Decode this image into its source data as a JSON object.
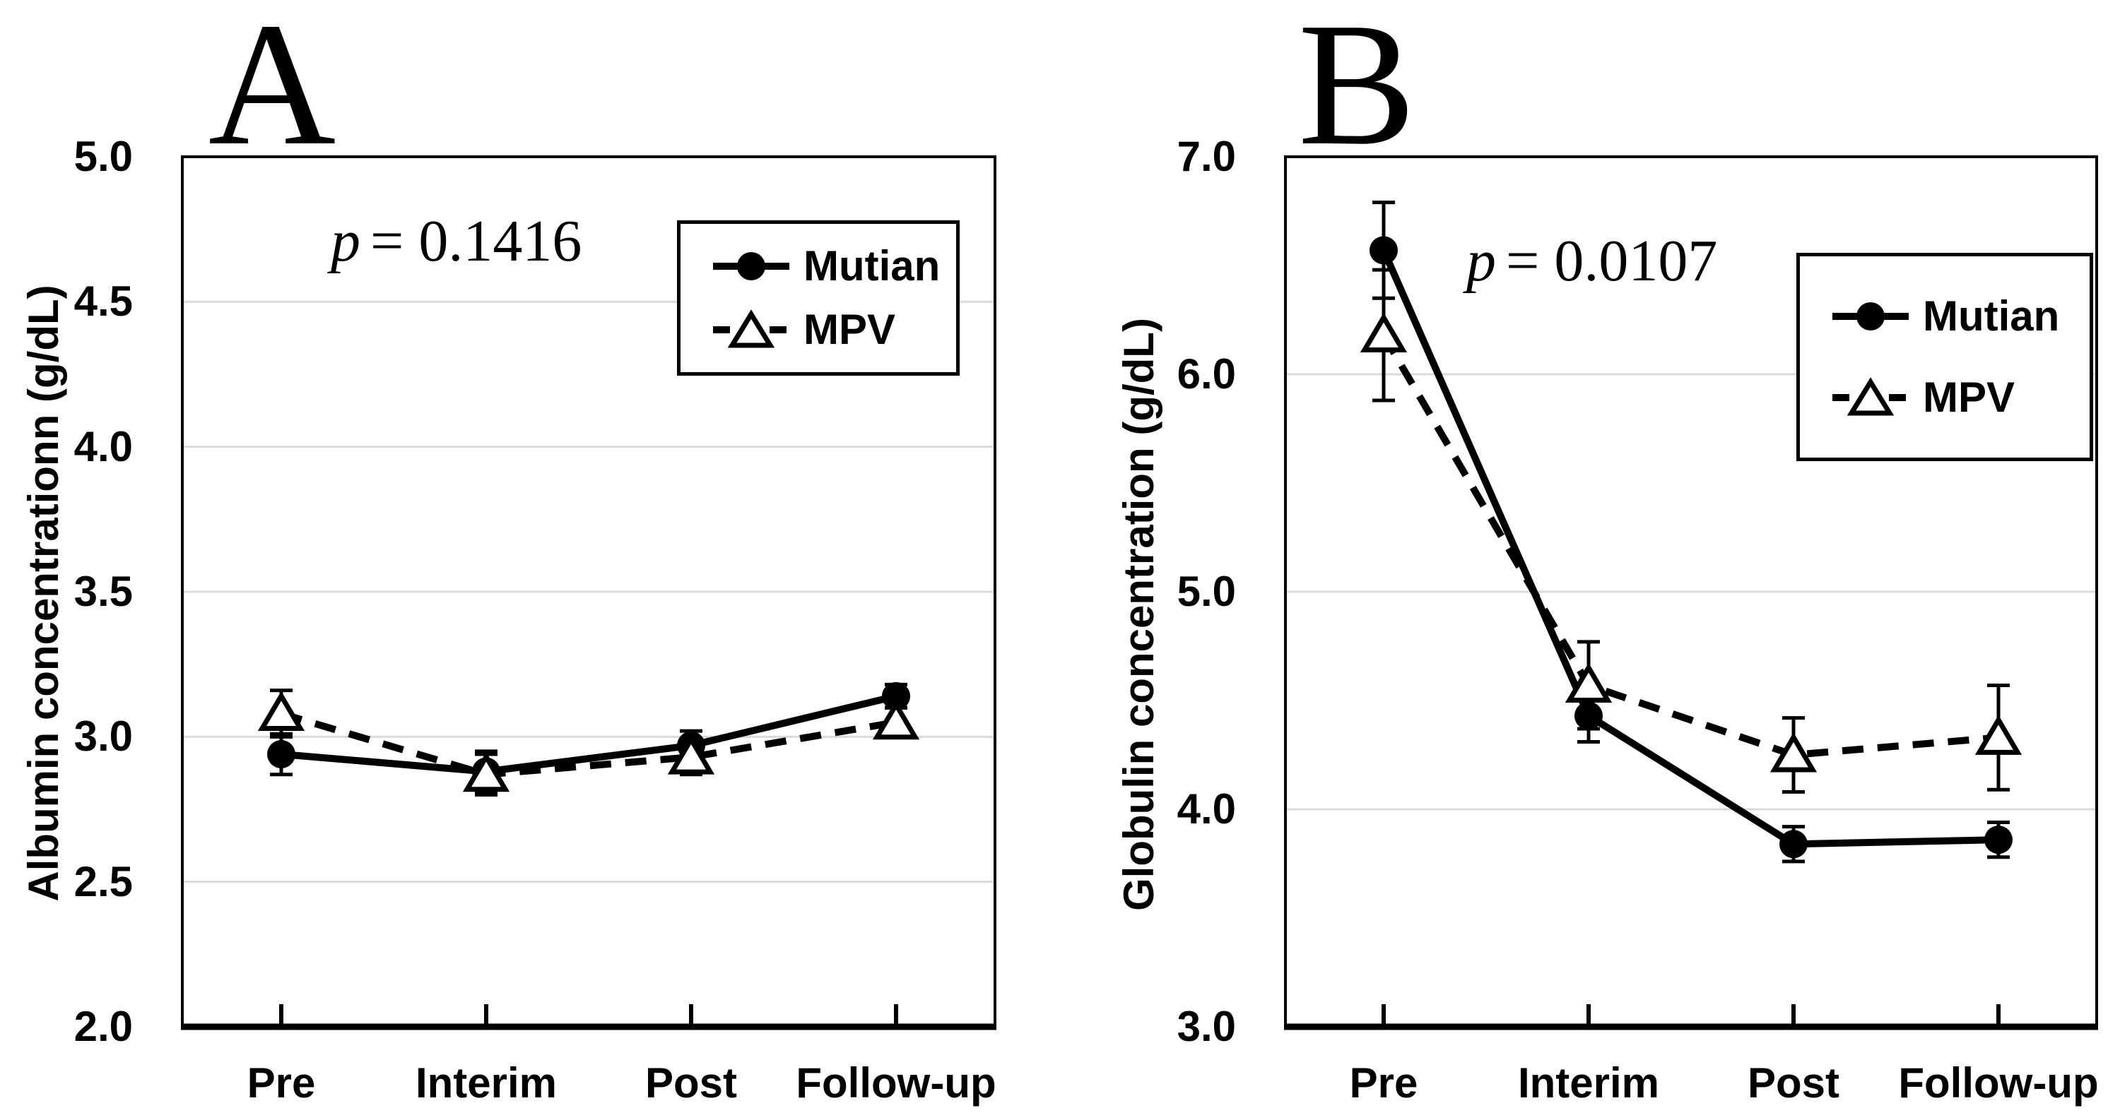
{
  "chart_data": [
    {
      "panel": "A",
      "type": "line",
      "title": "A",
      "categories": [
        "Pre",
        "Interim",
        "Post",
        "Follow-up"
      ],
      "series": [
        {
          "name": "Mutian",
          "line": "solid",
          "marker": "filled-circle",
          "values": [
            2.94,
            2.88,
            2.97,
            3.14
          ],
          "errors": [
            0.07,
            0.07,
            0.05,
            0.04
          ]
        },
        {
          "name": "MPV",
          "line": "dashed",
          "marker": "open-triangle",
          "values": [
            3.08,
            2.87,
            2.93,
            3.05
          ],
          "errors": [
            0.08,
            0.07,
            0.06,
            0.05
          ]
        }
      ],
      "ylabel": "Albumin concentrationn (g/dL)",
      "xlabel": "",
      "ylim": [
        2.0,
        5.0
      ],
      "yticks": [
        "5.0",
        "4.5",
        "4.0",
        "3.5",
        "3.0",
        "2.5",
        "2.0"
      ],
      "p_prefix": "p",
      "p_suffix": "= 0.1416",
      "grid": "horizontal-light",
      "legend_position": "top-right-inside"
    },
    {
      "panel": "B",
      "type": "line",
      "title": "B",
      "categories": [
        "Pre",
        "Interim",
        "Post",
        "Follow-up"
      ],
      "series": [
        {
          "name": "Mutian",
          "line": "solid",
          "marker": "filled-circle",
          "values": [
            6.57,
            4.43,
            3.84,
            3.86
          ],
          "errors": [
            0.22,
            0.12,
            0.08,
            0.08
          ]
        },
        {
          "name": "MPV",
          "line": "dashed",
          "marker": "open-triangle",
          "values": [
            6.18,
            4.57,
            4.25,
            4.33
          ],
          "errors": [
            0.3,
            0.2,
            0.17,
            0.24
          ]
        }
      ],
      "ylabel": "Globulin concentration (g/dL)",
      "xlabel": "",
      "ylim": [
        3.0,
        7.0
      ],
      "yticks": [
        "7.0",
        "6.0",
        "5.0",
        "4.0",
        "3.0"
      ],
      "p_prefix": "p",
      "p_suffix": "= 0.0107",
      "grid": "horizontal-light",
      "legend_position": "top-right-inside"
    }
  ],
  "colors": {
    "foreground": "#000000",
    "gridline": "#d9d9d9",
    "background": "#ffffff"
  }
}
